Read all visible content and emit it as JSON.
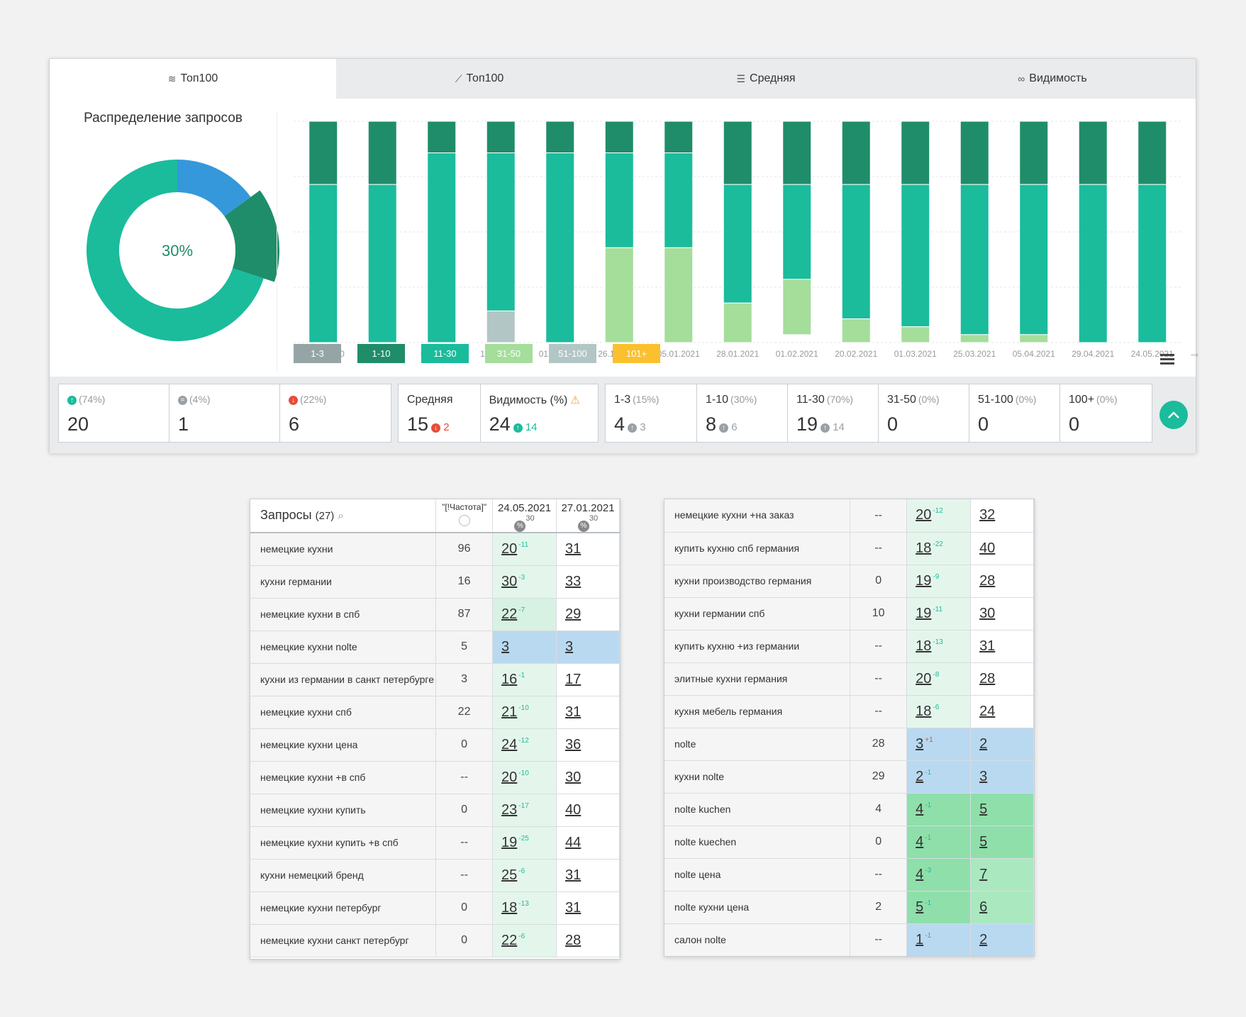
{
  "tabs": [
    {
      "icon": "layers-icon",
      "label": "Топ100"
    },
    {
      "icon": "chart-line-icon",
      "label": "Топ100"
    },
    {
      "icon": "lines-icon",
      "label": "Средняя"
    },
    {
      "icon": "glasses-icon",
      "label": "Видимость"
    }
  ],
  "distribution": {
    "title": "Распределение запросов",
    "center_label": "30%",
    "slices": [
      {
        "label": "1-3",
        "value": 15,
        "color": "#3498db"
      },
      {
        "label": "1-10",
        "value": 15,
        "color": "#1f8d6a"
      },
      {
        "label": "11-30",
        "value": 70,
        "color": "#1abc9c"
      }
    ]
  },
  "colors": {
    "c1_3": "#95a5a6",
    "c1_10": "#1f8d6a",
    "c11_30": "#1abc9c",
    "c31_50": "#a5dd9b",
    "c51_100": "#b2c6c5",
    "c101": "#fbc02d"
  },
  "chart_data": {
    "type": "bar",
    "stacked": true,
    "categories": [
      "01.10.2020",
      "15.10.2020",
      "02.11.2020",
      "11.11.2020",
      "01.12.2020",
      "26.12.2020",
      "05.01.2021",
      "28.01.2021",
      "01.02.2021",
      "20.02.2021",
      "01.03.2021",
      "25.03.2021",
      "05.04.2021",
      "29.04.2021",
      "24.05.2021"
    ],
    "series": [
      {
        "name": "1-10",
        "color": "#1f8d6a",
        "values": [
          8,
          8,
          4,
          4,
          4,
          4,
          4,
          8,
          8,
          8,
          8,
          8,
          8,
          8,
          8
        ]
      },
      {
        "name": "11-30",
        "color": "#1abc9c",
        "values": [
          20,
          20,
          24,
          20,
          24,
          12,
          12,
          15,
          12,
          17,
          18,
          19,
          19,
          20,
          20
        ]
      },
      {
        "name": "31-50",
        "color": "#a5dd9b",
        "values": [
          0,
          0,
          0,
          0,
          0,
          12,
          12,
          5,
          7,
          3,
          2,
          1,
          1,
          0,
          0
        ]
      },
      {
        "name": "51-100",
        "color": "#b2c6c5",
        "values": [
          0,
          0,
          0,
          4,
          0,
          0,
          0,
          0,
          0,
          0,
          0,
          0,
          0,
          0,
          0
        ]
      }
    ],
    "ylim": [
      0,
      28
    ],
    "grid": true
  },
  "legend": [
    "1-3",
    "1-10",
    "11-30",
    "31-50",
    "51-100",
    "101+"
  ],
  "stats": {
    "changes": [
      {
        "icon": "arrow-up-icon",
        "pct": "(74%)",
        "value": "20"
      },
      {
        "icon": "equal-icon",
        "pct": "(4%)",
        "value": "1"
      },
      {
        "icon": "arrow-down-icon",
        "pct": "(22%)",
        "value": "6"
      }
    ],
    "avg": {
      "label": "Средняя",
      "value": "15",
      "delta": "2"
    },
    "vis": {
      "label": "Видимость (%)",
      "value": "24",
      "delta": "14"
    },
    "ranges": [
      {
        "label": "1-3",
        "pct": "(15%)",
        "value": "4",
        "delta": "3"
      },
      {
        "label": "1-10",
        "pct": "(30%)",
        "value": "8",
        "delta": "6"
      },
      {
        "label": "11-30",
        "pct": "(70%)",
        "value": "19",
        "delta": "14"
      },
      {
        "label": "31-50",
        "pct": "(0%)",
        "value": "0",
        "delta": ""
      },
      {
        "label": "51-100",
        "pct": "(0%)",
        "value": "0",
        "delta": ""
      },
      {
        "label": "100+",
        "pct": "(0%)",
        "value": "0",
        "delta": ""
      }
    ]
  },
  "table_header": {
    "queries_label": "Запросы",
    "queries_count": "(27)",
    "freq_label": "\"[!Частота]\"",
    "date1": "24.05.2021",
    "date1_num": "30",
    "date2": "27.01.2021",
    "date2_num": "30"
  },
  "left_rows": [
    {
      "q": "немецкие кухни",
      "f": "96",
      "p1": "20",
      "d": "-11",
      "dd": "up",
      "p2": "31",
      "c1": "bg-lg",
      "c2": "bg-w"
    },
    {
      "q": "кухни германии",
      "f": "16",
      "p1": "30",
      "d": "-3",
      "dd": "up",
      "p2": "33",
      "c1": "bg-lg",
      "c2": "bg-w"
    },
    {
      "q": "немецкие кухни в спб",
      "f": "87",
      "p1": "22",
      "d": "-7",
      "dd": "up",
      "p2": "29",
      "c1": "bg-lg2",
      "c2": "bg-w"
    },
    {
      "q": "немецкие кухни nolte",
      "f": "5",
      "p1": "3",
      "d": "",
      "dd": "up",
      "p2": "3",
      "c1": "bg-b",
      "c2": "bg-b"
    },
    {
      "q": "кухни из германии в санкт петербурге",
      "f": "3",
      "p1": "16",
      "d": "-1",
      "dd": "up",
      "p2": "17",
      "c1": "bg-lg",
      "c2": "bg-w"
    },
    {
      "q": "немецкие кухни спб",
      "f": "22",
      "p1": "21",
      "d": "-10",
      "dd": "up",
      "p2": "31",
      "c1": "bg-lg",
      "c2": "bg-w"
    },
    {
      "q": "немецкие кухни цена",
      "f": "0",
      "p1": "24",
      "d": "-12",
      "dd": "up",
      "p2": "36",
      "c1": "bg-lg",
      "c2": "bg-w"
    },
    {
      "q": "немецкие кухни +в спб",
      "f": "--",
      "p1": "20",
      "d": "-10",
      "dd": "up",
      "p2": "30",
      "c1": "bg-lg",
      "c2": "bg-w"
    },
    {
      "q": "немецкие кухни купить",
      "f": "0",
      "p1": "23",
      "d": "-17",
      "dd": "up",
      "p2": "40",
      "c1": "bg-lg",
      "c2": "bg-w"
    },
    {
      "q": "немецкие кухни купить +в спб",
      "f": "--",
      "p1": "19",
      "d": "-25",
      "dd": "up",
      "p2": "44",
      "c1": "bg-lg",
      "c2": "bg-w"
    },
    {
      "q": "кухни немецкий бренд",
      "f": "--",
      "p1": "25",
      "d": "-6",
      "dd": "up",
      "p2": "31",
      "c1": "bg-lg",
      "c2": "bg-w"
    },
    {
      "q": "немецкие кухни петербург",
      "f": "0",
      "p1": "18",
      "d": "-13",
      "dd": "up",
      "p2": "31",
      "c1": "bg-lg",
      "c2": "bg-w"
    },
    {
      "q": "немецкие кухни санкт петербург",
      "f": "0",
      "p1": "22",
      "d": "-6",
      "dd": "up",
      "p2": "28",
      "c1": "bg-lg",
      "c2": "bg-w"
    }
  ],
  "right_rows": [
    {
      "q": "немецкие кухни +на заказ",
      "f": "--",
      "p1": "20",
      "d": "-12",
      "dd": "up",
      "p2": "32",
      "c1": "bg-lg",
      "c2": "bg-w"
    },
    {
      "q": "купить кухню спб германия",
      "f": "--",
      "p1": "18",
      "d": "-22",
      "dd": "up",
      "p2": "40",
      "c1": "bg-lg",
      "c2": "bg-w"
    },
    {
      "q": "кухни производство германия",
      "f": "0",
      "p1": "19",
      "d": "-9",
      "dd": "up",
      "p2": "28",
      "c1": "bg-lg",
      "c2": "bg-w"
    },
    {
      "q": "кухни германии спб",
      "f": "10",
      "p1": "19",
      "d": "-11",
      "dd": "up",
      "p2": "30",
      "c1": "bg-lg",
      "c2": "bg-w"
    },
    {
      "q": "купить кухню +из германии",
      "f": "--",
      "p1": "18",
      "d": "-13",
      "dd": "up",
      "p2": "31",
      "c1": "bg-lg",
      "c2": "bg-w"
    },
    {
      "q": "элитные кухни германия",
      "f": "--",
      "p1": "20",
      "d": "-8",
      "dd": "up",
      "p2": "28",
      "c1": "bg-lg",
      "c2": "bg-w"
    },
    {
      "q": "кухня мебель германия",
      "f": "--",
      "p1": "18",
      "d": "-6",
      "dd": "up",
      "p2": "24",
      "c1": "bg-lg",
      "c2": "bg-w"
    },
    {
      "q": "nolte",
      "f": "28",
      "p1": "3",
      "d": "+1",
      "dd": "down",
      "p2": "2",
      "c1": "bg-b",
      "c2": "bg-b"
    },
    {
      "q": "кухни nolte",
      "f": "29",
      "p1": "2",
      "d": "-1",
      "dd": "up",
      "p2": "3",
      "c1": "bg-b",
      "c2": "bg-b"
    },
    {
      "q": "nolte kuchen",
      "f": "4",
      "p1": "4",
      "d": "-1",
      "dd": "up",
      "p2": "5",
      "c1": "bg-g",
      "c2": "bg-g"
    },
    {
      "q": "nolte kuechen",
      "f": "0",
      "p1": "4",
      "d": "-1",
      "dd": "up",
      "p2": "5",
      "c1": "bg-g",
      "c2": "bg-g"
    },
    {
      "q": "nolte цена",
      "f": "--",
      "p1": "4",
      "d": "-3",
      "dd": "up",
      "p2": "7",
      "c1": "bg-g",
      "c2": "bg-g2"
    },
    {
      "q": "nolte кухни цена",
      "f": "2",
      "p1": "5",
      "d": "-1",
      "dd": "up",
      "p2": "6",
      "c1": "bg-g",
      "c2": "bg-g2"
    },
    {
      "q": "салон nolte",
      "f": "--",
      "p1": "1",
      "d": "-1",
      "dd": "up",
      "p2": "2",
      "c1": "bg-b",
      "c2": "bg-b"
    }
  ]
}
